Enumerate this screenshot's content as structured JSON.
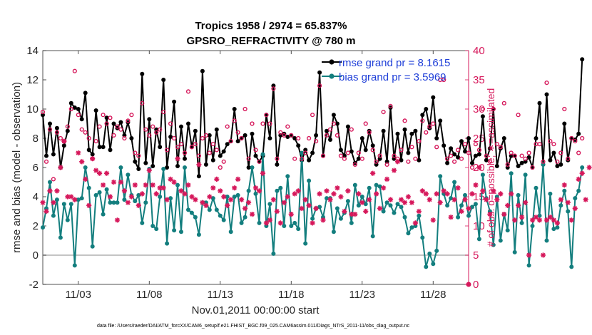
{
  "chart_data": {
    "type": "line",
    "title": "Tropics 1958 / 2974 = 65.837%",
    "subtitle": "GPSRO_REFRACTIVITY @ 780 m",
    "xlabel": "Nov.01,2011 00:00:00 start",
    "ylabel_left": "rmse and bias (model - observation)",
    "ylabel_right": "# of obs: o=possible; ∗=assimilated",
    "footer": "data file: /Users/raeder/DAI/ATM_forcXX/CAM6_setup/f.e21.FHIST_BGC.f09_025.CAM6assim.011/Diags_NTrS_2011-11/obs_diag_output.nc",
    "x_range": [
      0.5,
      30.5
    ],
    "x_ticks": [
      {
        "value": 3,
        "label": "11/03"
      },
      {
        "value": 8,
        "label": "11/08"
      },
      {
        "value": 13,
        "label": "11/13"
      },
      {
        "value": 18,
        "label": "11/18"
      },
      {
        "value": 23,
        "label": "11/23"
      },
      {
        "value": 28,
        "label": "11/28"
      }
    ],
    "ylim_left": [
      -2,
      14
    ],
    "yticks_left": [
      "-2",
      "0",
      "2",
      "4",
      "6",
      "8",
      "10",
      "12",
      "14"
    ],
    "ylim_right": [
      0,
      40
    ],
    "yticks_right": [
      "0",
      "5",
      "10",
      "15",
      "20",
      "25",
      "30",
      "35",
      "40"
    ],
    "zero_line": 0,
    "colors": {
      "rmse": "#000000",
      "bias": "#137e7e",
      "obs": "#d6185b",
      "zero": "#b0b0b0",
      "legend_text": "#1f3fd8"
    },
    "legend_position": "top-right",
    "x_step_days": 0.25,
    "x_start_day": 0.5,
    "series": [
      {
        "name": "rmse grand pr = 8.1615",
        "axis": "left",
        "marker": "filled-circle",
        "values": [
          9.6,
          6.8,
          9.0,
          6.9,
          8.7,
          6.0,
          7.5,
          8.5,
          10.4,
          10.1,
          10.0,
          9.3,
          11.1,
          7.2,
          6.9,
          9.9,
          7.4,
          7.4,
          9.4,
          7.2,
          9.0,
          8.7,
          9.1,
          8.2,
          9.1,
          8.0,
          6.4,
          5.9,
          12.4,
          6.3,
          9.3,
          6.1,
          8.6,
          7.4,
          12.0,
          6.0,
          8.1,
          10.5,
          6.1,
          8.8,
          6.6,
          9.0,
          7.4,
          8.5,
          5.4,
          12.6,
          6.2,
          8.2,
          6.5,
          8.6,
          6.8,
          7.1,
          7.6,
          7.8,
          10.0,
          7.8,
          8.0,
          8.2,
          6.0,
          8.3,
          6.8,
          6.4,
          6.8,
          9.6,
          8.0,
          11.6,
          6.2,
          8.2,
          8.3,
          8.1,
          8.2,
          8.0,
          7.5,
          6.5,
          7.2,
          6.5,
          7.0,
          8.2,
          12.5,
          6.8,
          8.5,
          7.9,
          9.6,
          9.0,
          7.2,
          6.8,
          8.8,
          7.1,
          6.3,
          6.6,
          8.0,
          7.2,
          8.5,
          7.5,
          6.2,
          6.6,
          8.5,
          6.4,
          10.1,
          6.6,
          8.3,
          6.5,
          8.6,
          7.0,
          8.3,
          8.5,
          6.5,
          9.6,
          10.0,
          8.7,
          10.8,
          8.0,
          9.2,
          7.5,
          6.3,
          7.3,
          6.9,
          6.7,
          7.8,
          7.1,
          8.0,
          6.3,
          6.8,
          6.9,
          9.5,
          6.5,
          7.3,
          10.0,
          6.1,
          7.3,
          8.0,
          6.0,
          6.8,
          6.8,
          6.1,
          6.3,
          6.4,
          6.7,
          6.0,
          8.0,
          10.4,
          6.2,
          11.0,
          6.5,
          7.0,
          6.1,
          6.2,
          9.0,
          6.5,
          8.0,
          7.9,
          8.3,
          13.4
        ]
      },
      {
        "name": "bias grand pr = 3.5969",
        "axis": "left",
        "marker": "filled-circle",
        "values": [
          1.9,
          3.2,
          5.0,
          2.7,
          3.8,
          1.2,
          3.5,
          2.4,
          3.5,
          -0.7,
          3.8,
          3.9,
          6.0,
          4.6,
          0.6,
          4.1,
          4.3,
          2.8,
          4.5,
          3.6,
          3.6,
          3.6,
          6.0,
          3.8,
          5.5,
          4.1,
          3.7,
          4.1,
          2.2,
          3.6,
          5.9,
          2.0,
          1.8,
          4.0,
          5.9,
          0.8,
          3.9,
          1.7,
          4.8,
          1.6,
          6.0,
          3.1,
          2.9,
          2.6,
          1.4,
          3.6,
          3.6,
          3.1,
          3.9,
          3.1,
          2.7,
          2.4,
          4.0,
          1.6,
          4.0,
          4.1,
          2.2,
          2.6,
          4.4,
          6.0,
          4.2,
          2.2,
          6.9,
          2.0,
          3.5,
          0.1,
          4.4,
          4.6,
          2.0,
          5.4,
          2.0,
          2.2,
          1.8,
          7.0,
          0.8,
          5.1,
          2.5,
          3.2,
          3.3,
          2.6,
          3.9,
          3.9,
          1.6,
          3.2,
          2.5,
          2.9,
          3.7,
          2.2,
          4.8,
          3.4,
          4.0,
          3.5,
          4.6,
          1.3,
          4.8,
          4.7,
          3.0,
          3.6,
          3.4,
          2.9,
          3.5,
          3.3,
          2.6,
          1.5,
          1.9,
          2.0,
          2.7,
          1.2,
          -0.8,
          0.1,
          -0.6,
          0.3,
          5.4,
          4.2,
          3.4,
          3.9,
          5.0,
          2.6,
          3.4,
          4.1,
          2.7,
          3.3,
          3.5,
          1.1,
          5.5,
          3.9,
          3.0,
          0.7,
          4.0,
          1.0,
          2.8,
          1.7,
          5.6,
          0.2,
          4.1,
          2.2,
          5.5,
          -0.7,
          2.0,
          4.6,
          2.7,
          6.2,
          1.0,
          4.2,
          1.8,
          1.9,
          3.4,
          4.4,
          3.0,
          -0.8,
          3.9,
          4.4,
          6.0
        ]
      },
      {
        "name": "possible",
        "axis": "right",
        "marker": "open-circle",
        "values": [
          29.5,
          21.0,
          26.5,
          18.0,
          26.0,
          25.0,
          24.5,
          27.0,
          30.0,
          36.5,
          29.0,
          26.5,
          26.0,
          25.0,
          21.5,
          24.5,
          27.0,
          29.0,
          27.5,
          28.5,
          25.5,
          27.0,
          26.5,
          25.0,
          28.0,
          29.0,
          22.5,
          22.0,
          31.0,
          26.5,
          25.5,
          27.0,
          26.0,
          26.5,
          29.5,
          23.0,
          27.5,
          25.0,
          23.5,
          24.0,
          22.5,
          33.0,
          23.5,
          24.0,
          22.0,
          25.0,
          25.5,
          22.5,
          24.0,
          23.0,
          20.0,
          21.0,
          27.0,
          24.5,
          28.0,
          26.0,
          25.0,
          30.0,
          21.5,
          27.5,
          23.0,
          21.0,
          27.5,
          29.0,
          27.5,
          33.5,
          21.5,
          26.0,
          25.5,
          27.0,
          25.5,
          21.5,
          25.0,
          21.5,
          22.5,
          25.0,
          29.0,
          24.5,
          34.0,
          22.0,
          25.5,
          26.5,
          27.5,
          25.5,
          22.0,
          21.5,
          22.5,
          26.5,
          20.5,
          22.5,
          21.5,
          27.5,
          26.0,
          23.0,
          21.0,
          22.0,
          29.5,
          20.5,
          30.5,
          22.0,
          21.5,
          23.0,
          28.0,
          21.0,
          23.5,
          21.5,
          24.5,
          28.0,
          26.0,
          27.0,
          27.5,
          23.5,
          35.0,
          35.0,
          21.5,
          22.0,
          21.0,
          23.0,
          21.5,
          24.0,
          22.5,
          20.0,
          24.0,
          23.0,
          30.0,
          22.0,
          21.0,
          30.0,
          24.0,
          23.5,
          31.0,
          20.5,
          22.5,
          22.0,
          29.0,
          22.0,
          21.5,
          22.5,
          20.0,
          24.0,
          24.0,
          21.0,
          34.5,
          24.5,
          24.0,
          21.0,
          22.5,
          30.0,
          21.5,
          25.0,
          24.5,
          22.5,
          25.0
        ]
      },
      {
        "name": "assimilated",
        "axis": "right",
        "marker": "asterisk",
        "values": [
          14.0,
          12.5,
          16.0,
          14.0,
          16.0,
          20.0,
          24.5,
          15.0,
          15.0,
          14.5,
          22.5,
          21.0,
          18.0,
          13.5,
          21.5,
          19.5,
          19.0,
          17.0,
          19.0,
          15.0,
          17.5,
          11.0,
          17.5,
          16.0,
          14.0,
          15.0,
          17.0,
          13.5,
          15.5,
          17.0,
          19.5,
          17.0,
          15.5,
          16.5,
          16.5,
          14.5,
          18.0,
          17.5,
          21.5,
          16.0,
          15.5,
          17.0,
          15.0,
          14.5,
          20.5,
          14.0,
          13.5,
          15.0,
          16.5,
          18.0,
          16.0,
          15.0,
          13.5,
          14.5,
          16.5,
          18.0,
          14.5,
          13.0,
          14.0,
          12.0,
          16.5,
          16.0,
          19.0,
          10.5,
          11.0,
          14.5,
          12.5,
          10.5,
          14.0,
          15.0,
          12.0,
          15.5,
          16.0,
          13.0,
          14.5,
          13.5,
          10.5,
          13.0,
          15.5,
          11.0,
          16.0,
          14.5,
          15.5,
          16.5,
          15.0,
          12.5,
          16.0,
          12.0,
          12.0,
          15.5,
          14.0,
          12.5,
          14.5,
          19.0,
          15.5,
          13.0,
          16.5,
          18.0,
          14.5,
          19.5,
          21.0,
          14.5,
          14.0,
          15.0,
          14.0,
          10.5,
          12.5,
          16.0,
          15.5,
          14.5,
          11.0,
          15.5,
          14.0,
          16.0,
          15.5,
          11.5,
          14.5,
          16.5,
          12.5,
          14.5,
          13.0,
          15.5,
          17.0,
          20.0,
          16.0,
          14.5,
          12.0,
          16.0,
          14.5,
          15.5,
          12.0,
          13.5,
          15.5,
          11.0,
          13.5,
          11.5,
          14.0,
          5.0,
          11.0,
          11.5,
          11.0,
          5.0,
          11.0,
          11.5,
          11.0,
          10.5,
          14.5,
          17.0,
          14.0,
          11.0,
          13.0,
          18.0,
          19.0,
          14.5,
          20.0
        ]
      }
    ]
  }
}
